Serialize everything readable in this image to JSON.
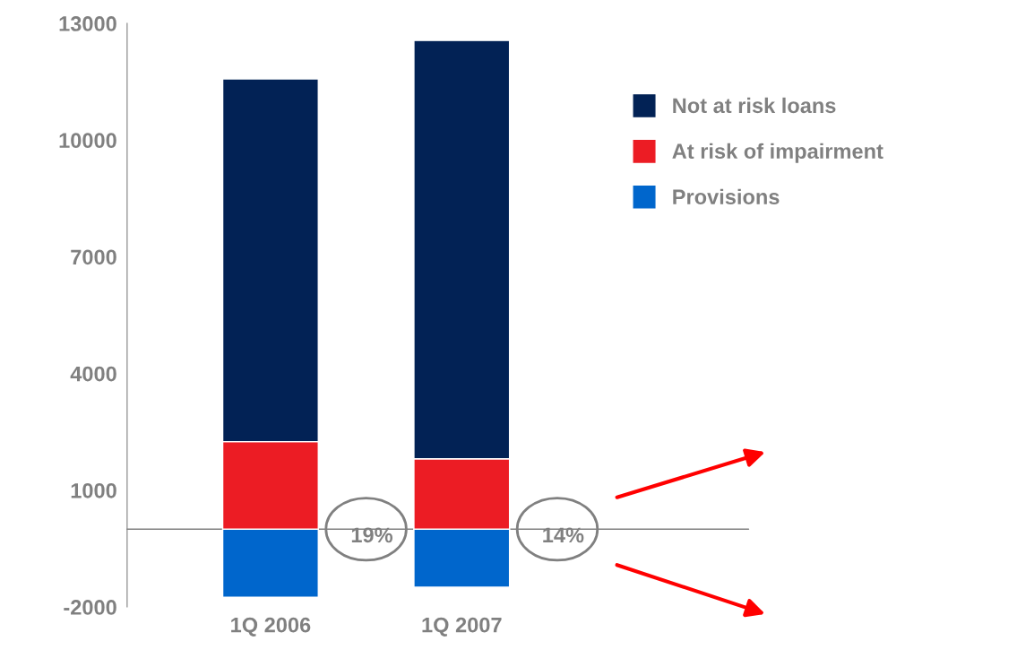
{
  "chart_data": {
    "type": "bar",
    "stacked": true,
    "categories": [
      "1Q 2006",
      "1Q 2007"
    ],
    "series": [
      {
        "name": "Provisions",
        "color": "#0066cc",
        "values": [
          -1750,
          -1490
        ]
      },
      {
        "name": "At risk of impairment",
        "color": "#ec1c24",
        "values": [
          2250,
          1810
        ]
      },
      {
        "name": "Not at risk loans",
        "color": "#022255",
        "values": [
          9320,
          10750
        ]
      }
    ],
    "ylim": [
      -2000,
      13000
    ],
    "yticks": [
      -2000,
      1000,
      4000,
      7000,
      10000,
      13000
    ],
    "ref_lines": [
      {
        "axis": "y",
        "value": 0,
        "color": "#808080"
      }
    ],
    "annotations": [
      "19%",
      "14%"
    ],
    "grid": false,
    "legend": "right"
  }
}
